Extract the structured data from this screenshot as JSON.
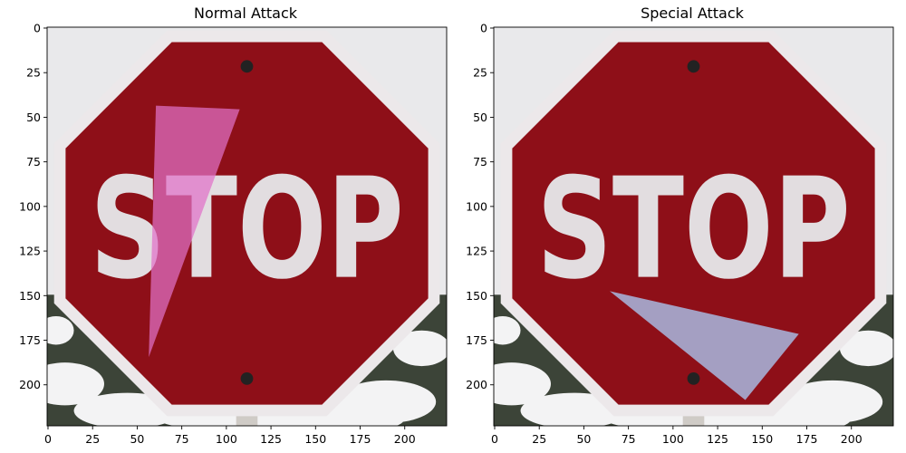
{
  "panels": [
    {
      "title": "Normal Attack",
      "sign_text": "STOP",
      "overlay": {
        "color": "#e070c8",
        "opacity": 0.72,
        "vertices": [
          [
            61,
            44
          ],
          [
            108,
            46
          ],
          [
            57,
            185
          ]
        ]
      }
    },
    {
      "title": "Special Attack",
      "sign_text": "STOP",
      "overlay": {
        "color": "#a8b8e0",
        "opacity": 0.85,
        "vertices": [
          [
            65,
            148
          ],
          [
            171,
            172
          ],
          [
            141,
            209
          ]
        ]
      }
    }
  ],
  "axes": {
    "x_ticks": [
      "0",
      "25",
      "50",
      "75",
      "100",
      "125",
      "150",
      "175",
      "200"
    ],
    "y_ticks": [
      "0",
      "25",
      "50",
      "75",
      "100",
      "125",
      "150",
      "175",
      "200"
    ],
    "image_size": 224
  },
  "colors": {
    "sign_red": "#8e0f18",
    "sign_border": "#ece8ea",
    "letters": "#e2dde0",
    "sky": "#e9e9eb",
    "foliage": "#3c4438",
    "snow": "#f3f3f4"
  }
}
